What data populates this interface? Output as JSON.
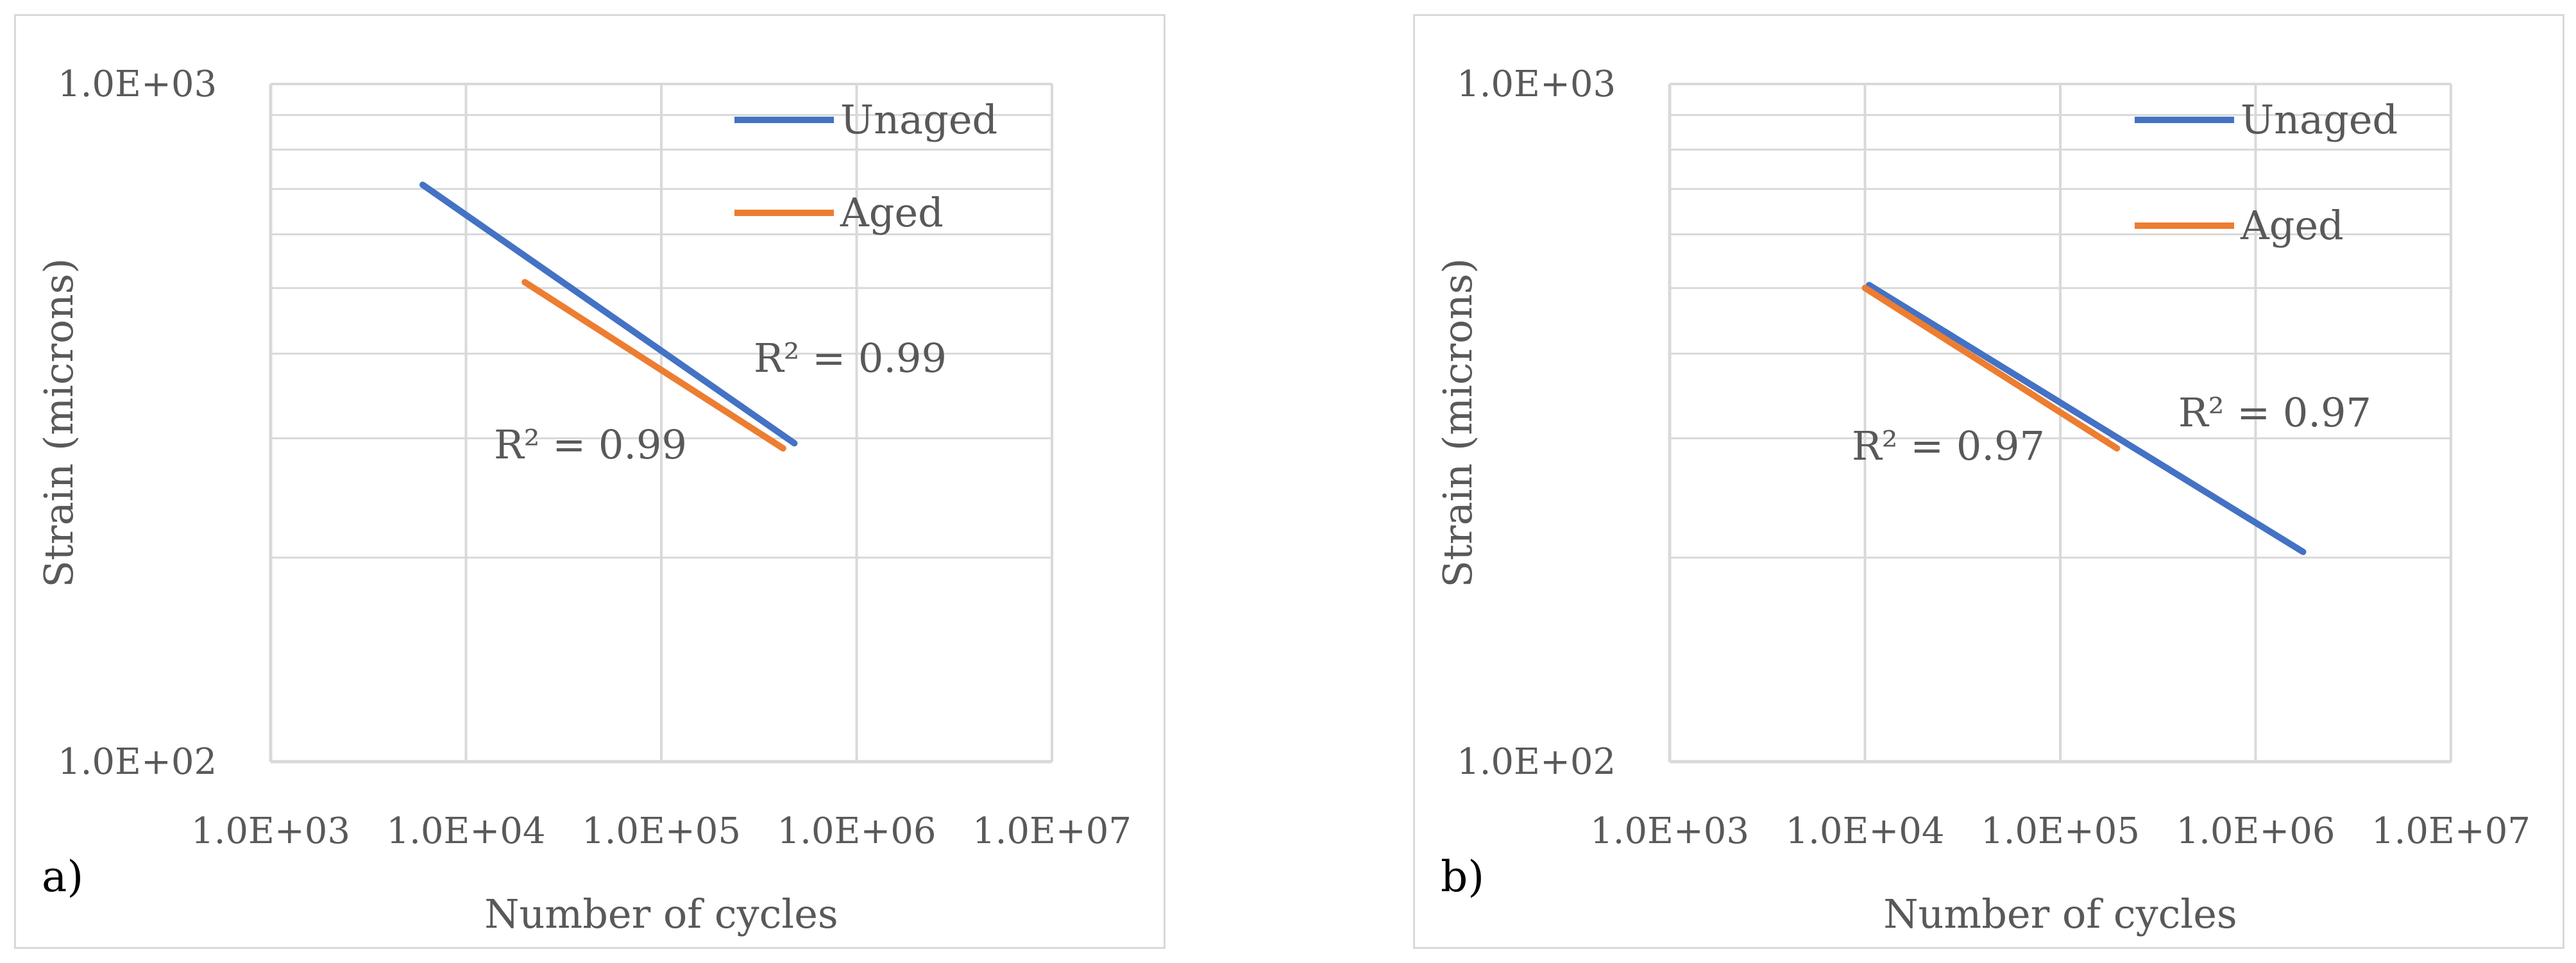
{
  "colors": {
    "unaged": "#4472C4",
    "aged": "#ED7D31",
    "grid": "#d9d9d9",
    "text": "#595959"
  },
  "chart_data": [
    {
      "type": "line",
      "panel_label": "a)",
      "xlabel": "Number of cycles",
      "ylabel": "Strain (microns)",
      "xscale": "log",
      "yscale": "log",
      "xlim": [
        1000,
        10000000
      ],
      "ylim": [
        100,
        1000
      ],
      "xticks": [
        "1.0E+03",
        "1.0E+04",
        "1.0E+05",
        "1.0E+06",
        "1.0E+07"
      ],
      "yticks": [
        "1.0E+02",
        "1.0E+03"
      ],
      "legend": {
        "position": "top-right",
        "entries": [
          "Unaged",
          "Aged"
        ]
      },
      "series": [
        {
          "name": "Unaged",
          "x": [
            6000,
            480000
          ],
          "y": [
            710,
            295
          ],
          "r2_label": "R² = 0.99"
        },
        {
          "name": "Aged",
          "x": [
            20000,
            420000
          ],
          "y": [
            510,
            290
          ],
          "r2_label": "R² = 0.99"
        }
      ]
    },
    {
      "type": "line",
      "panel_label": "b)",
      "xlabel": "Number of cycles",
      "ylabel": "Strain (microns)",
      "xscale": "log",
      "yscale": "log",
      "xlim": [
        1000,
        10000000
      ],
      "ylim": [
        100,
        1000
      ],
      "xticks": [
        "1.0E+03",
        "1.0E+04",
        "1.0E+05",
        "1.0E+06",
        "1.0E+07"
      ],
      "yticks": [
        "1.0E+02",
        "1.0E+03"
      ],
      "legend": {
        "position": "top-right",
        "entries": [
          "Unaged",
          "Aged"
        ]
      },
      "series": [
        {
          "name": "Unaged",
          "x": [
            10500,
            1750000
          ],
          "y": [
            505,
            204
          ],
          "r2_label": "R² = 0.97"
        },
        {
          "name": "Aged",
          "x": [
            10000,
            195000
          ],
          "y": [
            500,
            290
          ],
          "r2_label": "R² = 0.97"
        }
      ]
    }
  ]
}
